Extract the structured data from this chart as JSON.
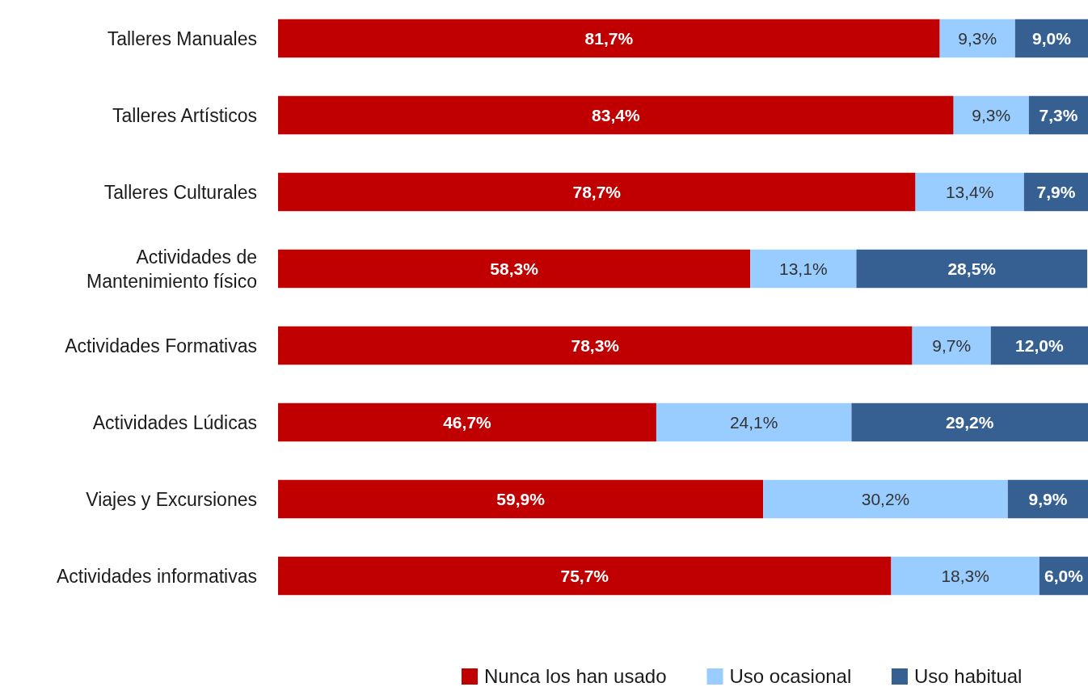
{
  "chart_data": {
    "type": "bar",
    "orientation": "horizontal",
    "stacked": true,
    "legend": "bottom",
    "tick_labels": false,
    "xlim": [
      0,
      100
    ],
    "categories": [
      "Talleres Manuales",
      "Talleres Artísticos",
      "Talleres Culturales",
      "Actividades de Mantenimiento físico",
      "Actividades Formativas",
      "Actividades Lúdicas",
      "Viajes y Excursiones",
      "Actividades informativas"
    ],
    "series": [
      {
        "name": "Nunca los han usado",
        "color": "#c00000",
        "values": [
          81.7,
          83.4,
          78.7,
          58.3,
          78.3,
          46.7,
          59.9,
          75.7
        ],
        "value_labels": [
          "81,7%",
          "83,4%",
          "78,7%",
          "58,3%",
          "78,3%",
          "46,7%",
          "59,9%",
          "75,7%"
        ]
      },
      {
        "name": "Uso ocasional",
        "color": "#99ccff",
        "values": [
          9.3,
          9.3,
          13.4,
          13.1,
          9.7,
          24.1,
          30.2,
          18.3
        ],
        "value_labels": [
          "9,3%",
          "9,3%",
          "13,4%",
          "13,1%",
          "9,7%",
          "24,1%",
          "30,2%",
          "18,3%"
        ]
      },
      {
        "name": "Uso habitual",
        "color": "#366092",
        "values": [
          9.0,
          7.3,
          7.9,
          28.5,
          12.0,
          29.2,
          9.9,
          6.0
        ],
        "value_labels": [
          "9,0%",
          "7,3%",
          "7,9%",
          "28,5%",
          "12,0%",
          "29,2%",
          "9,9%",
          "6,0%"
        ]
      }
    ]
  }
}
